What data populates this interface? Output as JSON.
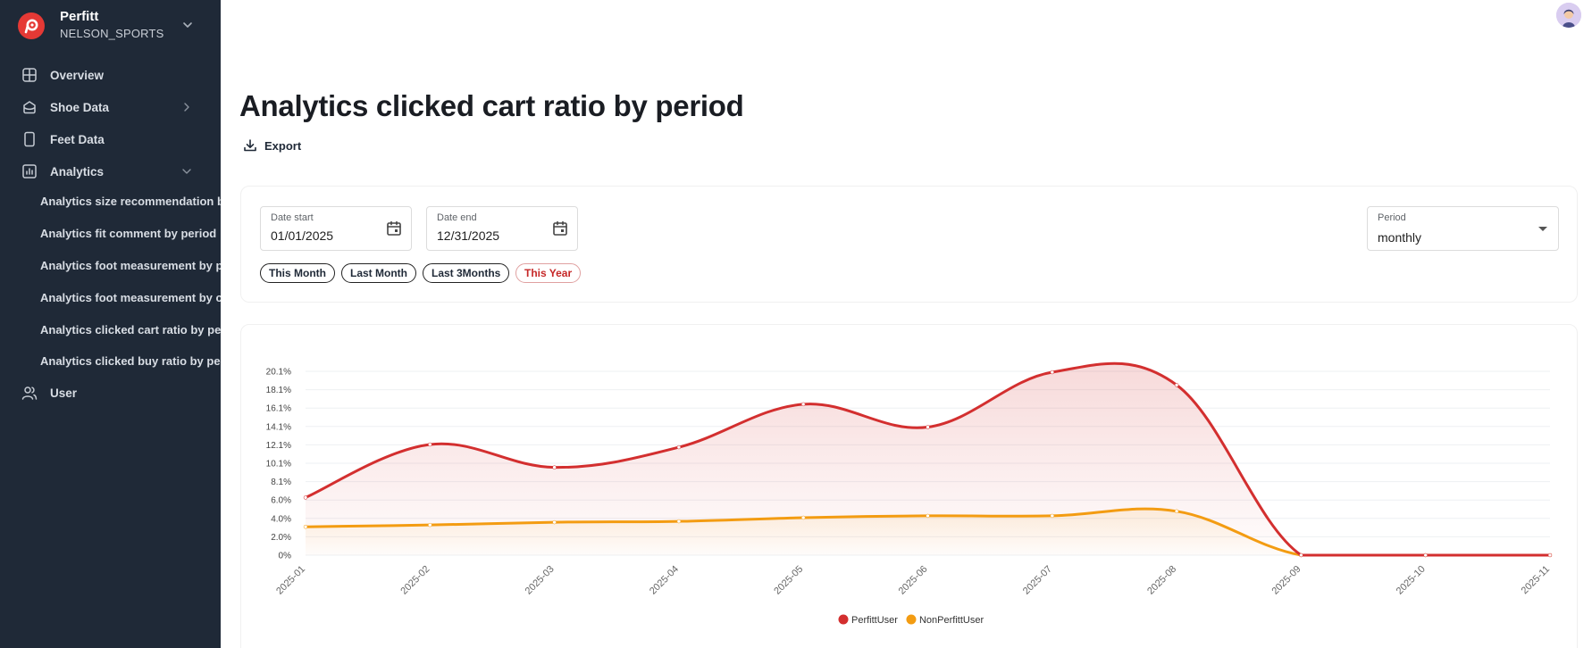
{
  "brand": {
    "name": "Perfitt",
    "org": "NELSON_SPORTS"
  },
  "nav": {
    "overview": "Overview",
    "shoe_data": "Shoe Data",
    "feet_data": "Feet Data",
    "analytics": "Analytics",
    "user": "User",
    "analytics_items": [
      "Analytics size recommendation by period",
      "Analytics fit comment by period",
      "Analytics foot measurement by period",
      "Analytics foot measurement by country",
      "Analytics clicked cart ratio by period",
      "Analytics clicked buy ratio by period"
    ]
  },
  "page": {
    "title": "Analytics clicked cart ratio by period",
    "export_label": "Export"
  },
  "filters": {
    "date_start": {
      "label": "Date start",
      "value": "01/01/2025"
    },
    "date_end": {
      "label": "Date end",
      "value": "12/31/2025"
    },
    "period": {
      "label": "Period",
      "value": "monthly"
    },
    "quick_ranges": [
      "This Month",
      "Last Month",
      "Last 3Months",
      "This Year"
    ],
    "active_range": "This Year"
  },
  "colors": {
    "sidebar_bg": "#1f2937",
    "perfitt_series": "#d32f2f",
    "nonperfitt_series": "#f39c12",
    "active_chip": "#c62828"
  },
  "icons": {
    "brand": "perfitt-logo-icon",
    "overview": "grid-icon",
    "shoe_data": "shoe-box-icon",
    "feet_data": "phone-icon",
    "analytics": "bar-chart-icon",
    "user": "users-icon",
    "export": "download-icon",
    "date": "calendar-icon"
  },
  "chart_data": {
    "type": "area",
    "categories": [
      "2025-01",
      "2025-02",
      "2025-03",
      "2025-04",
      "2025-05",
      "2025-06",
      "2025-07",
      "2025-08",
      "2025-09",
      "2025-10",
      "2025-11"
    ],
    "y_tick_labels": [
      "0%",
      "2.0%",
      "4.0%",
      "6.0%",
      "8.1%",
      "10.1%",
      "12.1%",
      "14.1%",
      "16.1%",
      "18.1%",
      "20.1%"
    ],
    "ylim": [
      0,
      20.1
    ],
    "series": [
      {
        "name": "PerfittUser",
        "color": "#d32f2f",
        "values": [
          6.3,
          12.1,
          9.6,
          11.8,
          16.5,
          14.0,
          20.0,
          18.6,
          0,
          0,
          0
        ]
      },
      {
        "name": "NonPerfittUser",
        "color": "#f39c12",
        "values": [
          3.1,
          3.3,
          3.6,
          3.7,
          4.1,
          4.3,
          4.3,
          4.8,
          0,
          0,
          0
        ]
      }
    ],
    "grid": true,
    "legend": "bottom-center"
  }
}
